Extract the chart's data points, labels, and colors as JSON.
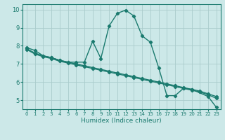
{
  "xlabel": "Humidex (Indice chaleur)",
  "bg_color": "#cce8e8",
  "grid_color": "#aacccc",
  "line_color": "#1a7a6e",
  "xlim": [
    -0.5,
    23.5
  ],
  "ylim": [
    4.5,
    10.3
  ],
  "xticks": [
    0,
    1,
    2,
    3,
    4,
    5,
    6,
    7,
    8,
    9,
    10,
    11,
    12,
    13,
    14,
    15,
    16,
    17,
    18,
    19,
    20,
    21,
    22,
    23
  ],
  "yticks": [
    5,
    6,
    7,
    8,
    9,
    10
  ],
  "series1_x": [
    0,
    1,
    2,
    3,
    4,
    5,
    6,
    7,
    8,
    9,
    10,
    11,
    12,
    13,
    14,
    15,
    16,
    17,
    18,
    19,
    20,
    22,
    23
  ],
  "series1_y": [
    7.9,
    7.75,
    7.45,
    7.35,
    7.2,
    7.1,
    7.1,
    7.1,
    8.25,
    7.3,
    9.1,
    9.8,
    9.97,
    9.65,
    8.55,
    8.2,
    6.8,
    5.25,
    5.25,
    5.65,
    5.6,
    5.2,
    4.6
  ],
  "series2_x": [
    0,
    1,
    2,
    3,
    4,
    5,
    6,
    7,
    8,
    9,
    10,
    11,
    12,
    13,
    14,
    15,
    16,
    17,
    18,
    19,
    20,
    21,
    22,
    23
  ],
  "series2_y": [
    7.85,
    7.6,
    7.45,
    7.35,
    7.2,
    7.1,
    7.0,
    6.9,
    6.8,
    6.7,
    6.6,
    6.5,
    6.4,
    6.3,
    6.2,
    6.1,
    6.0,
    5.9,
    5.8,
    5.7,
    5.6,
    5.5,
    5.35,
    5.2
  ],
  "series3_x": [
    0,
    1,
    2,
    3,
    4,
    5,
    6,
    7,
    8,
    9,
    10,
    11,
    12,
    13,
    14,
    15,
    16,
    17,
    18,
    19,
    20,
    21,
    22,
    23
  ],
  "series3_y": [
    7.8,
    7.55,
    7.4,
    7.3,
    7.15,
    7.05,
    6.95,
    6.85,
    6.75,
    6.65,
    6.55,
    6.45,
    6.35,
    6.25,
    6.15,
    6.05,
    5.95,
    5.85,
    5.75,
    5.65,
    5.55,
    5.45,
    5.3,
    5.1
  ]
}
